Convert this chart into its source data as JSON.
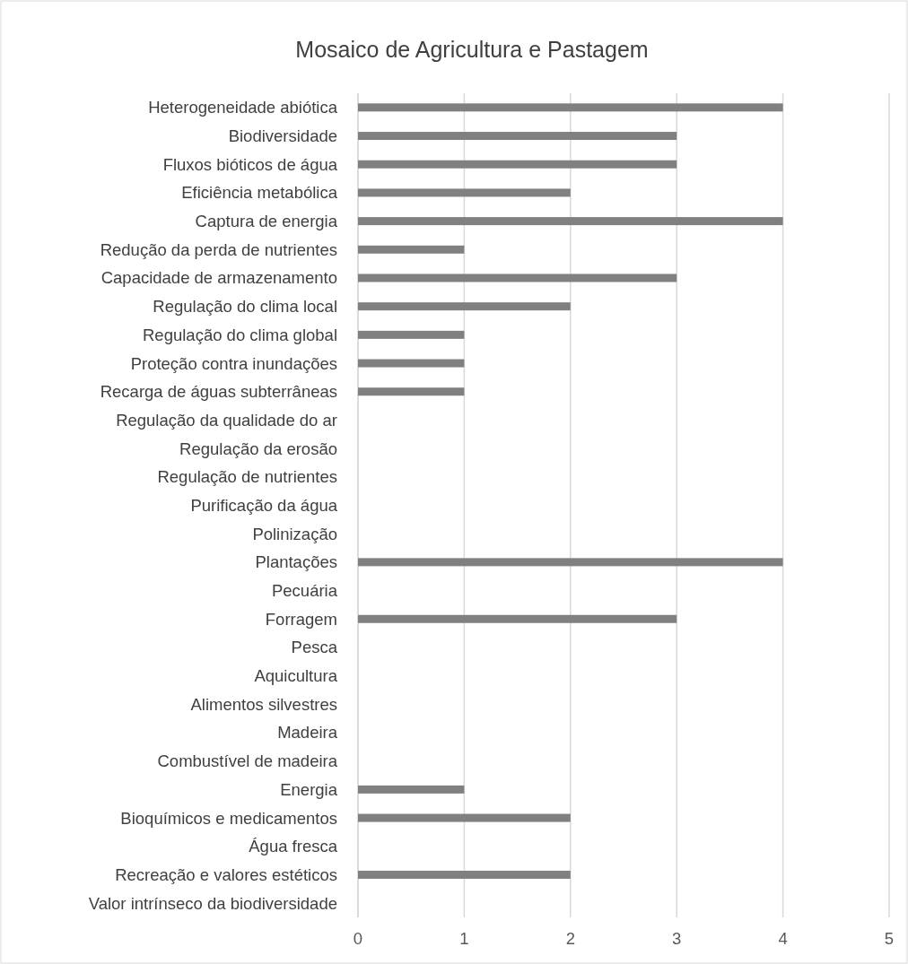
{
  "chart_data": {
    "type": "bar",
    "orientation": "horizontal",
    "title": "Mosaico de Agricultura e Pastagem",
    "categories": [
      "Heterogeneidade abiótica",
      "Biodiversidade",
      "Fluxos bióticos de água",
      "Eficiência metabólica",
      "Captura de energia",
      "Redução da perda de nutrientes",
      "Capacidade de armazenamento",
      "Regulação do clima local",
      "Regulação do clima global",
      "Proteção contra inundações",
      "Recarga de águas subterrâneas",
      "Regulação da qualidade do ar",
      "Regulação da erosão",
      "Regulação de nutrientes",
      "Purificação da água",
      "Polinização",
      "Plantações",
      "Pecuária",
      "Forragem",
      "Pesca",
      "Aquicultura",
      "Alimentos silvestres",
      "Madeira",
      "Combustível de madeira",
      "Energia",
      "Bioquímicos e medicamentos",
      "Água fresca",
      "Recreação e valores estéticos",
      "Valor intrínseco da biodiversidade"
    ],
    "values": [
      4,
      3,
      3,
      2,
      4,
      1,
      3,
      2,
      1,
      1,
      1,
      0,
      0,
      0,
      0,
      0,
      4,
      0,
      3,
      0,
      0,
      0,
      0,
      0,
      1,
      2,
      0,
      2,
      0
    ],
    "color": "#808080",
    "xlim": [
      0,
      5
    ],
    "xticks": [
      0,
      1,
      2,
      3,
      4,
      5
    ],
    "grid": "x"
  }
}
